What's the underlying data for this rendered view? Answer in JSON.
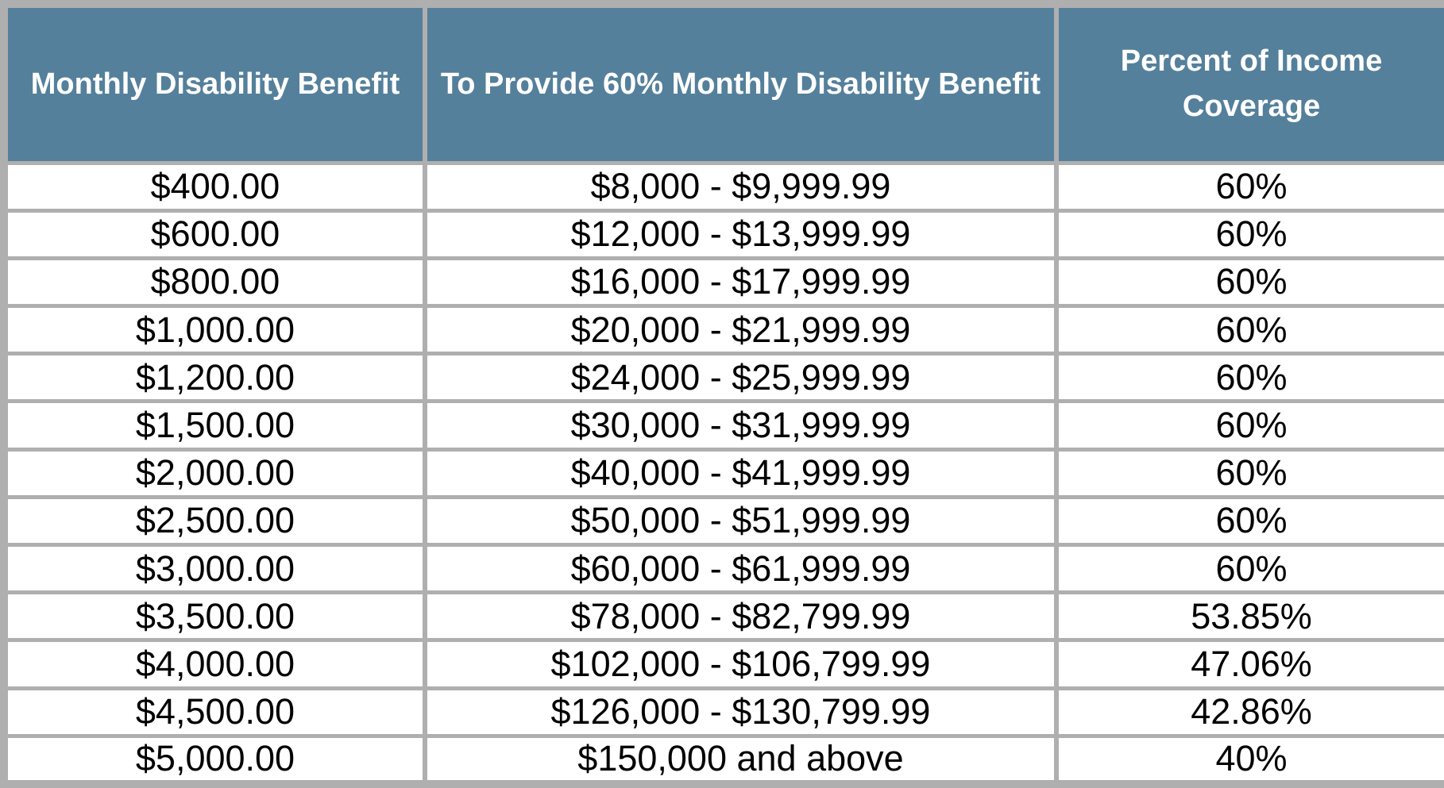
{
  "colors": {
    "header_bg": "#54809B",
    "header_text": "#FFFFFF",
    "grid": "#AFAFAF",
    "row_bg": "#FFFFFF",
    "cell_text": "#000000"
  },
  "table": {
    "columns": [
      {
        "label": "Monthly Disability Benefit"
      },
      {
        "label": "To Provide 60% Monthly Disability Benefit"
      },
      {
        "label": "Percent of Income Coverage"
      }
    ],
    "rows": [
      [
        "$400.00",
        "$8,000 - $9,999.99",
        "60%"
      ],
      [
        "$600.00",
        "$12,000 - $13,999.99",
        "60%"
      ],
      [
        "$800.00",
        "$16,000 - $17,999.99",
        "60%"
      ],
      [
        "$1,000.00",
        "$20,000 - $21,999.99",
        "60%"
      ],
      [
        "$1,200.00",
        "$24,000 - $25,999.99",
        "60%"
      ],
      [
        "$1,500.00",
        "$30,000 - $31,999.99",
        "60%"
      ],
      [
        "$2,000.00",
        "$40,000 - $41,999.99",
        "60%"
      ],
      [
        "$2,500.00",
        "$50,000 - $51,999.99",
        "60%"
      ],
      [
        "$3,000.00",
        "$60,000 - $61,999.99",
        "60%"
      ],
      [
        "$3,500.00",
        "$78,000 - $82,799.99",
        "53.85%"
      ],
      [
        "$4,000.00",
        "$102,000 - $106,799.99",
        "47.06%"
      ],
      [
        "$4,500.00",
        "$126,000 - $130,799.99",
        "42.86%"
      ],
      [
        "$5,000.00",
        "$150,000 and above",
        "40%"
      ]
    ]
  }
}
